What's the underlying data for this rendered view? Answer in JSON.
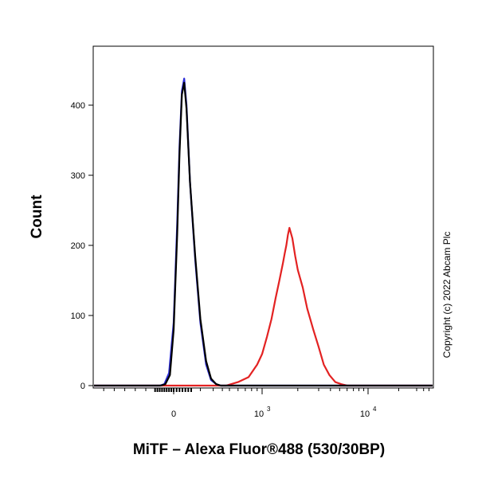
{
  "chart_data": {
    "type": "line",
    "title": "",
    "xlabel": "MiTF – Alexa Fluor®488 (530/30BP)",
    "ylabel": "Count",
    "ylim": [
      0,
      450
    ],
    "yticks": [
      0,
      100,
      200,
      300,
      400
    ],
    "xscale": "biexponential",
    "xticks": [
      {
        "label": "0",
        "base": "",
        "exp": ""
      },
      {
        "label": "",
        "base": "10",
        "exp": "3"
      },
      {
        "label": "",
        "base": "10",
        "exp": "4"
      }
    ],
    "grid": false,
    "legend": "none",
    "annotation": "Copyright (c) 2022 Abcam Plc",
    "series": [
      {
        "color": "#2b2bd6",
        "x": [
          -150,
          -100,
          -50,
          0,
          30,
          50,
          70,
          90,
          110,
          140,
          170,
          200,
          240,
          280,
          330,
          380
        ],
        "y": [
          0,
          2,
          18,
          90,
          230,
          340,
          420,
          438,
          400,
          290,
          180,
          90,
          30,
          8,
          2,
          0
        ]
      },
      {
        "color": "#000000",
        "x": [
          -140,
          -90,
          -40,
          0,
          30,
          50,
          70,
          90,
          110,
          140,
          170,
          200,
          240,
          280,
          330,
          380
        ],
        "y": [
          0,
          2,
          15,
          80,
          215,
          330,
          415,
          432,
          395,
          290,
          185,
          95,
          35,
          10,
          2,
          0
        ]
      },
      {
        "color": "#e32222",
        "x": [
          450,
          600,
          750,
          900,
          1000,
          1100,
          1200,
          1300,
          1400,
          1500,
          1550,
          1600,
          1650,
          1700,
          1800,
          1900,
          2000,
          2200,
          2400,
          2700,
          3000,
          3400,
          3900,
          4500,
          5200,
          6000
        ],
        "y": [
          0,
          5,
          12,
          30,
          45,
          70,
          95,
          125,
          150,
          175,
          188,
          200,
          215,
          225,
          210,
          185,
          165,
          140,
          110,
          80,
          55,
          30,
          15,
          5,
          2,
          0
        ]
      }
    ]
  }
}
